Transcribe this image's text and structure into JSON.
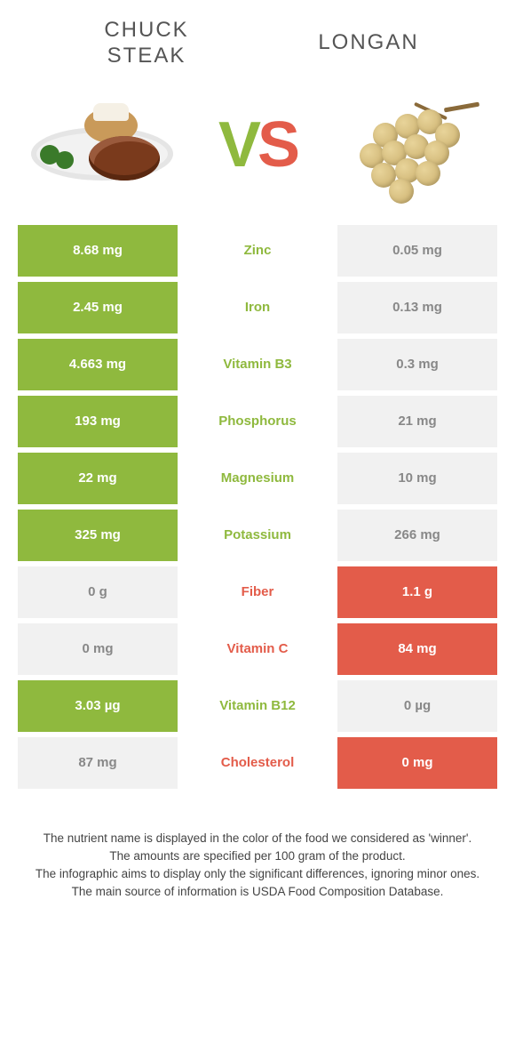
{
  "colors": {
    "green": "#8fb93e",
    "red": "#e35c4a",
    "pale": "#f1f1f1",
    "pale_text": "#888888",
    "white": "#ffffff"
  },
  "left_food": {
    "title": "CHUCK\nSTEAK"
  },
  "right_food": {
    "title": "LONGAN"
  },
  "vs": {
    "v": "V",
    "s": "S"
  },
  "rows": [
    {
      "nutrient": "Zinc",
      "left": "8.68 mg",
      "right": "0.05 mg",
      "winner": "left"
    },
    {
      "nutrient": "Iron",
      "left": "2.45 mg",
      "right": "0.13 mg",
      "winner": "left"
    },
    {
      "nutrient": "Vitamin B3",
      "left": "4.663 mg",
      "right": "0.3 mg",
      "winner": "left"
    },
    {
      "nutrient": "Phosphorus",
      "left": "193 mg",
      "right": "21 mg",
      "winner": "left"
    },
    {
      "nutrient": "Magnesium",
      "left": "22 mg",
      "right": "10 mg",
      "winner": "left"
    },
    {
      "nutrient": "Potassium",
      "left": "325 mg",
      "right": "266 mg",
      "winner": "left"
    },
    {
      "nutrient": "Fiber",
      "left": "0 g",
      "right": "1.1 g",
      "winner": "right"
    },
    {
      "nutrient": "Vitamin C",
      "left": "0 mg",
      "right": "84 mg",
      "winner": "right"
    },
    {
      "nutrient": "Vitamin B12",
      "left": "3.03 µg",
      "right": "0 µg",
      "winner": "left"
    },
    {
      "nutrient": "Cholesterol",
      "left": "87 mg",
      "right": "0 mg",
      "winner": "right"
    }
  ],
  "footer": {
    "line1": "The nutrient name is displayed in the color of the food we considered as 'winner'.",
    "line2": "The amounts are specified per 100 gram of the product.",
    "line3": "The infographic aims to display only the significant differences, ignoring minor ones.",
    "line4": "The main source of information is USDA Food Composition Database."
  }
}
